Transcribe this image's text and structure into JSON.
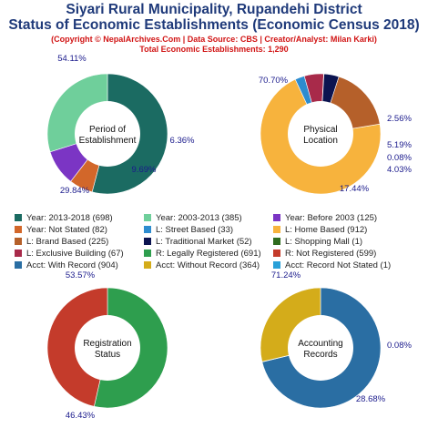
{
  "header": {
    "title_line1": "Siyari Rural Municipality, Rupandehi District",
    "title_line2": "Status of Economic Establishments (Economic Census 2018)",
    "copyright": "(Copyright © NepalArchives.Com | Data Source: CBS | Creator/Analyst: Milan Karki)",
    "total": "Total Economic Establishments: 1,290"
  },
  "chart_data": [
    {
      "type": "pie",
      "center_label": [
        "Period of",
        "Establishment"
      ],
      "slices": [
        {
          "label": "Year: 2013-2018 (698)",
          "value": 698,
          "pct": "54.11%",
          "color": "#1b6b62"
        },
        {
          "label": "Year: Not Stated (82)",
          "value": 82,
          "pct": "6.36%",
          "color": "#d2672a"
        },
        {
          "label": "Year: Before 2003 (125)",
          "value": 125,
          "pct": "9.69%",
          "color": "#7b35c4"
        },
        {
          "label": "Year: 2003-2013 (385)",
          "value": 385,
          "pct": "29.84%",
          "color": "#6fcf9b"
        }
      ]
    },
    {
      "type": "pie",
      "center_label": [
        "Physical",
        "Location"
      ],
      "slices": [
        {
          "label": "L: Home Based (912)",
          "value": 912,
          "pct": "70.70%",
          "color": "#f7b33d"
        },
        {
          "label": "L: Street Based (33)",
          "value": 33,
          "pct": "2.56%",
          "color": "#2d8ccf"
        },
        {
          "label": "L: Exclusive Building (67)",
          "value": 67,
          "pct": "5.19%",
          "color": "#a82a4a"
        },
        {
          "label": "L: Shopping Mall (1)",
          "value": 1,
          "pct": "0.08%",
          "color": "#2e6b1e"
        },
        {
          "label": "L: Traditional Market (52)",
          "value": 52,
          "pct": "4.03%",
          "color": "#0c1450"
        },
        {
          "label": "L: Brand Based (225)",
          "value": 225,
          "pct": "17.44%",
          "color": "#b5602a"
        }
      ]
    },
    {
      "type": "pie",
      "center_label": [
        "Registration",
        "Status"
      ],
      "slices": [
        {
          "label": "R: Legally Registered (691)",
          "value": 691,
          "pct": "53.57%",
          "color": "#2e9e4e"
        },
        {
          "label": "R: Not Registered (599)",
          "value": 599,
          "pct": "46.43%",
          "color": "#c43b2b"
        }
      ]
    },
    {
      "type": "pie",
      "center_label": [
        "Accounting",
        "Records"
      ],
      "slices": [
        {
          "label": "Acct: With Record (904)",
          "value": 904,
          "pct": "71.24%",
          "color": "#2a6ea3"
        },
        {
          "label": "Acct: Record Not Stated (1)",
          "value": 1,
          "pct": "0.08%",
          "color": "#29a0d8"
        },
        {
          "label": "Acct: Without Record (364)",
          "value": 364,
          "pct": "28.68%",
          "color": "#d4ac1a"
        }
      ]
    }
  ],
  "legend": [
    {
      "label": "Year: 2013-2018 (698)",
      "color": "#1b6b62"
    },
    {
      "label": "Year: 2003-2013 (385)",
      "color": "#6fcf9b"
    },
    {
      "label": "Year: Before 2003 (125)",
      "color": "#7b35c4"
    },
    {
      "label": "Year: Not Stated (82)",
      "color": "#d2672a"
    },
    {
      "label": "L: Street Based (33)",
      "color": "#2d8ccf"
    },
    {
      "label": "L: Home Based (912)",
      "color": "#f7b33d"
    },
    {
      "label": "L: Brand Based (225)",
      "color": "#b5602a"
    },
    {
      "label": "L: Traditional Market (52)",
      "color": "#0c1450"
    },
    {
      "label": "L: Shopping Mall (1)",
      "color": "#2e6b1e"
    },
    {
      "label": "L: Exclusive Building (67)",
      "color": "#a82a4a"
    },
    {
      "label": "R: Legally Registered (691)",
      "color": "#2e9e4e"
    },
    {
      "label": "R: Not Registered (599)",
      "color": "#c43b2b"
    },
    {
      "label": "Acct: With Record (904)",
      "color": "#2a6ea3"
    },
    {
      "label": "Acct: Without Record (364)",
      "color": "#d4ac1a"
    },
    {
      "label": "Acct: Record Not Stated (1)",
      "color": "#29a0d8"
    }
  ]
}
